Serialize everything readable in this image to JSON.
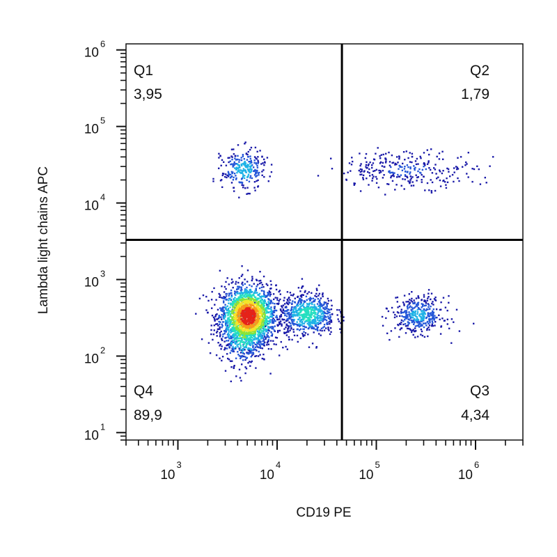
{
  "chart_data": {
    "type": "scatter",
    "title": "",
    "xlabel": "CD19 PE",
    "ylabel": "Lambda light chains APC",
    "x_scale": "log",
    "y_scale": "log",
    "xlim": [
      300,
      3000000
    ],
    "ylim": [
      8,
      1200000
    ],
    "x_ticks": [
      {
        "base": "10",
        "exp": "3",
        "value": 1000
      },
      {
        "base": "10",
        "exp": "4",
        "value": 10000
      },
      {
        "base": "10",
        "exp": "5",
        "value": 100000
      },
      {
        "base": "10",
        "exp": "6",
        "value": 1000000
      }
    ],
    "y_ticks": [
      {
        "base": "10",
        "exp": "1",
        "value": 10
      },
      {
        "base": "10",
        "exp": "2",
        "value": 100
      },
      {
        "base": "10",
        "exp": "3",
        "value": 1000
      },
      {
        "base": "10",
        "exp": "4",
        "value": 10000
      },
      {
        "base": "10",
        "exp": "5",
        "value": 100000
      },
      {
        "base": "10",
        "exp": "6",
        "value": 1000000
      }
    ],
    "gate": {
      "x": 45000,
      "y": 3300
    },
    "quadrants": [
      {
        "name": "Q1",
        "value": "3,95",
        "position": "top-left"
      },
      {
        "name": "Q2",
        "value": "1,79",
        "position": "top-right"
      },
      {
        "name": "Q3",
        "value": "4,34",
        "position": "bottom-right"
      },
      {
        "name": "Q4",
        "value": "89,9",
        "position": "bottom-left"
      }
    ],
    "populations": [
      {
        "cx": 5000,
        "cy": 340,
        "sx": 0.14,
        "sy": 0.2,
        "count": 1800,
        "peak": 1.0
      },
      {
        "cx": 4500,
        "cy": 220,
        "sx": 0.12,
        "sy": 0.22,
        "count": 500,
        "peak": 0.55
      },
      {
        "cx": 20000,
        "cy": 360,
        "sx": 0.14,
        "sy": 0.14,
        "count": 650,
        "peak": 0.45
      },
      {
        "cx": 260000,
        "cy": 350,
        "sx": 0.13,
        "sy": 0.12,
        "count": 380,
        "peak": 0.3
      },
      {
        "cx": 4500,
        "cy": 28000,
        "sx": 0.11,
        "sy": 0.13,
        "count": 260,
        "peak": 0.35
      },
      {
        "cx": 200000,
        "cy": 28000,
        "sx": 0.35,
        "sy": 0.12,
        "count": 280,
        "peak": 0.15
      }
    ],
    "density_colors": [
      "#1a1aa8",
      "#2356d8",
      "#1fb2e6",
      "#25dfc0",
      "#8be33a",
      "#f4e52a",
      "#f79a1c",
      "#e5231a"
    ],
    "grid": false,
    "legend": "none"
  }
}
